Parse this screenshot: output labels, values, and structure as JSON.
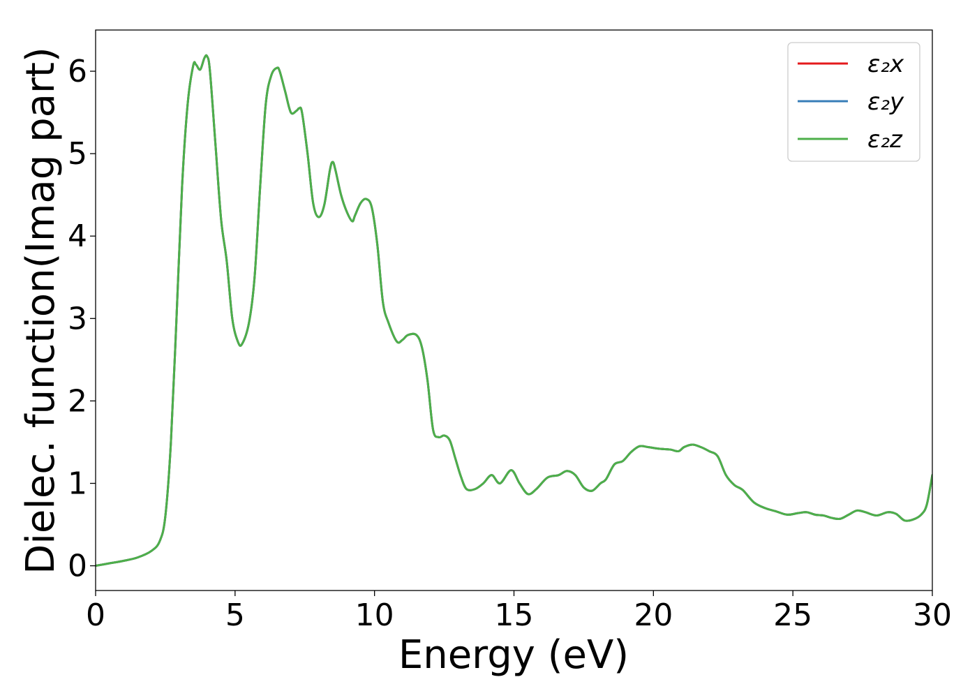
{
  "chart_data": {
    "type": "line",
    "title": "",
    "xlabel": "Energy (eV)",
    "ylabel": "Dielec. function(Imag part)",
    "xlim": [
      0,
      30
    ],
    "ylim": [
      -0.3,
      6.5
    ],
    "xticks": [
      0,
      5,
      10,
      15,
      20,
      25,
      30
    ],
    "yticks": [
      0,
      1,
      2,
      3,
      4,
      5,
      6
    ],
    "grid": false,
    "legend_position": "top-right",
    "x": [
      0,
      0.5,
      1.0,
      1.5,
      2.0,
      2.3,
      2.5,
      2.7,
      2.9,
      3.1,
      3.3,
      3.5,
      3.6,
      3.75,
      3.9,
      4.0,
      4.1,
      4.3,
      4.5,
      4.7,
      4.9,
      5.1,
      5.25,
      5.5,
      5.7,
      5.9,
      6.1,
      6.3,
      6.5,
      6.6,
      6.8,
      7.0,
      7.2,
      7.3,
      7.4,
      7.6,
      7.8,
      8.0,
      8.2,
      8.4,
      8.5,
      8.6,
      8.8,
      9.0,
      9.2,
      9.3,
      9.5,
      9.7,
      9.9,
      10.1,
      10.3,
      10.5,
      10.8,
      11.0,
      11.2,
      11.5,
      11.7,
      11.9,
      12.1,
      12.3,
      12.5,
      12.7,
      12.9,
      13.1,
      13.3,
      13.6,
      13.9,
      14.2,
      14.5,
      14.9,
      15.2,
      15.5,
      15.8,
      16.2,
      16.6,
      16.9,
      17.2,
      17.5,
      17.8,
      18.1,
      18.3,
      18.6,
      18.9,
      19.2,
      19.5,
      19.8,
      20.2,
      20.6,
      20.9,
      21.1,
      21.4,
      21.7,
      22.0,
      22.3,
      22.6,
      22.9,
      23.2,
      23.6,
      24.0,
      24.4,
      24.8,
      25.2,
      25.5,
      25.8,
      26.1,
      26.4,
      26.7,
      27.0,
      27.3,
      27.6,
      28.0,
      28.4,
      28.7,
      29.0,
      29.3,
      29.6,
      29.8,
      30.0
    ],
    "series": [
      {
        "name": "ε₂x",
        "color": "#e41a1c",
        "values": [
          0.0,
          0.03,
          0.06,
          0.1,
          0.18,
          0.3,
          0.6,
          1.5,
          3.0,
          4.6,
          5.6,
          6.07,
          6.08,
          6.02,
          6.16,
          6.18,
          6.0,
          5.1,
          4.2,
          3.7,
          3.0,
          2.72,
          2.69,
          2.95,
          3.5,
          4.6,
          5.6,
          5.95,
          6.04,
          6.0,
          5.75,
          5.5,
          5.52,
          5.55,
          5.5,
          5.0,
          4.4,
          4.23,
          4.38,
          4.8,
          4.9,
          4.8,
          4.5,
          4.3,
          4.18,
          4.25,
          4.4,
          4.45,
          4.35,
          3.9,
          3.2,
          2.95,
          2.72,
          2.74,
          2.8,
          2.8,
          2.65,
          2.25,
          1.65,
          1.56,
          1.58,
          1.52,
          1.3,
          1.08,
          0.93,
          0.93,
          1.0,
          1.1,
          1.0,
          1.16,
          1.0,
          0.87,
          0.93,
          1.07,
          1.1,
          1.15,
          1.1,
          0.95,
          0.91,
          1.0,
          1.05,
          1.23,
          1.27,
          1.38,
          1.45,
          1.44,
          1.42,
          1.41,
          1.39,
          1.44,
          1.47,
          1.44,
          1.39,
          1.33,
          1.1,
          0.98,
          0.92,
          0.77,
          0.7,
          0.66,
          0.62,
          0.64,
          0.65,
          0.62,
          0.61,
          0.58,
          0.57,
          0.62,
          0.67,
          0.65,
          0.61,
          0.65,
          0.63,
          0.55,
          0.56,
          0.62,
          0.74,
          1.1
        ]
      },
      {
        "name": "ε₂y",
        "color": "#377eb8",
        "values": [
          0.0,
          0.03,
          0.06,
          0.1,
          0.18,
          0.3,
          0.6,
          1.5,
          3.0,
          4.6,
          5.6,
          6.07,
          6.08,
          6.02,
          6.16,
          6.18,
          6.0,
          5.1,
          4.2,
          3.7,
          3.0,
          2.72,
          2.69,
          2.95,
          3.5,
          4.6,
          5.6,
          5.95,
          6.04,
          6.0,
          5.75,
          5.5,
          5.52,
          5.55,
          5.5,
          5.0,
          4.4,
          4.23,
          4.38,
          4.8,
          4.9,
          4.8,
          4.5,
          4.3,
          4.18,
          4.25,
          4.4,
          4.45,
          4.35,
          3.9,
          3.2,
          2.95,
          2.72,
          2.74,
          2.8,
          2.8,
          2.65,
          2.25,
          1.65,
          1.56,
          1.58,
          1.52,
          1.3,
          1.08,
          0.93,
          0.93,
          1.0,
          1.1,
          1.0,
          1.16,
          1.0,
          0.87,
          0.93,
          1.07,
          1.1,
          1.15,
          1.1,
          0.95,
          0.91,
          1.0,
          1.05,
          1.23,
          1.27,
          1.38,
          1.45,
          1.44,
          1.42,
          1.41,
          1.39,
          1.44,
          1.47,
          1.44,
          1.39,
          1.33,
          1.1,
          0.98,
          0.92,
          0.77,
          0.7,
          0.66,
          0.62,
          0.64,
          0.65,
          0.62,
          0.61,
          0.58,
          0.57,
          0.62,
          0.67,
          0.65,
          0.61,
          0.65,
          0.63,
          0.55,
          0.56,
          0.62,
          0.74,
          1.1
        ]
      },
      {
        "name": "ε₂z",
        "color": "#4daf4a",
        "values": [
          0.0,
          0.03,
          0.06,
          0.1,
          0.18,
          0.3,
          0.6,
          1.5,
          3.0,
          4.6,
          5.6,
          6.07,
          6.08,
          6.02,
          6.16,
          6.18,
          6.0,
          5.1,
          4.2,
          3.7,
          3.0,
          2.72,
          2.69,
          2.95,
          3.5,
          4.6,
          5.6,
          5.95,
          6.04,
          6.0,
          5.75,
          5.5,
          5.52,
          5.55,
          5.5,
          5.0,
          4.4,
          4.23,
          4.38,
          4.8,
          4.9,
          4.8,
          4.5,
          4.3,
          4.18,
          4.25,
          4.4,
          4.45,
          4.35,
          3.9,
          3.2,
          2.95,
          2.72,
          2.74,
          2.8,
          2.8,
          2.65,
          2.25,
          1.65,
          1.56,
          1.58,
          1.52,
          1.3,
          1.08,
          0.93,
          0.93,
          1.0,
          1.1,
          1.0,
          1.16,
          1.0,
          0.87,
          0.93,
          1.07,
          1.1,
          1.15,
          1.1,
          0.95,
          0.91,
          1.0,
          1.05,
          1.23,
          1.27,
          1.38,
          1.45,
          1.44,
          1.42,
          1.41,
          1.39,
          1.44,
          1.47,
          1.44,
          1.39,
          1.33,
          1.1,
          0.98,
          0.92,
          0.77,
          0.7,
          0.66,
          0.62,
          0.64,
          0.65,
          0.62,
          0.61,
          0.58,
          0.57,
          0.62,
          0.67,
          0.65,
          0.61,
          0.65,
          0.63,
          0.55,
          0.56,
          0.62,
          0.74,
          1.1
        ]
      }
    ]
  }
}
